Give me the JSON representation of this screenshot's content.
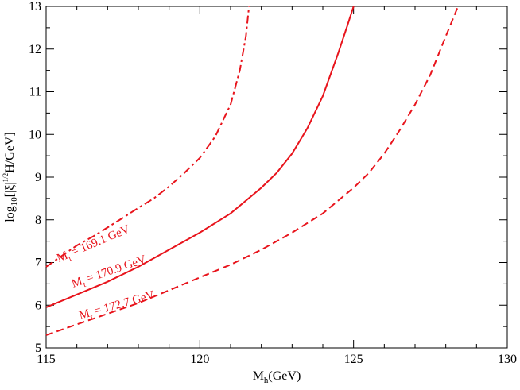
{
  "chart_data": {
    "type": "line",
    "xlabel": {
      "main": "M",
      "sub": "h",
      "rest": "(GeV)"
    },
    "ylabel": {
      "p1": "log",
      "sub": "10",
      "p2": "[|ξ|",
      "sup": "1/2",
      "p3": "H/GeV]"
    },
    "xlim": [
      115,
      130
    ],
    "ylim": [
      5,
      13
    ],
    "xticks": [
      115,
      120,
      125,
      130
    ],
    "yticks": [
      5,
      6,
      7,
      8,
      9,
      10,
      11,
      12,
      13
    ],
    "grid": false,
    "line_color": "#e8141c",
    "series": [
      {
        "name": "M_t = 169.1 GeV",
        "label": {
          "main": "M",
          "sub": "t",
          "rest": " = 169.1 GeV"
        },
        "dash": "dashdot",
        "points": [
          [
            115.0,
            6.9
          ],
          [
            115.5,
            7.15
          ],
          [
            116.0,
            7.4
          ],
          [
            116.5,
            7.6
          ],
          [
            117.0,
            7.82
          ],
          [
            117.5,
            8.05
          ],
          [
            118.0,
            8.28
          ],
          [
            118.5,
            8.5
          ],
          [
            119.0,
            8.78
          ],
          [
            119.5,
            9.1
          ],
          [
            120.0,
            9.45
          ],
          [
            120.5,
            9.95
          ],
          [
            121.0,
            10.7
          ],
          [
            121.3,
            11.5
          ],
          [
            121.5,
            12.3
          ],
          [
            121.6,
            13.0
          ]
        ]
      },
      {
        "name": "M_t = 170.9 GeV",
        "label": {
          "main": "M",
          "sub": "t",
          "rest": " = 170.9 GeV"
        },
        "dash": "solid",
        "points": [
          [
            115.0,
            5.95
          ],
          [
            116.0,
            6.25
          ],
          [
            117.0,
            6.55
          ],
          [
            118.0,
            6.9
          ],
          [
            119.0,
            7.3
          ],
          [
            120.0,
            7.7
          ],
          [
            121.0,
            8.15
          ],
          [
            122.0,
            8.75
          ],
          [
            122.5,
            9.1
          ],
          [
            123.0,
            9.55
          ],
          [
            123.5,
            10.15
          ],
          [
            124.0,
            10.9
          ],
          [
            124.5,
            11.9
          ],
          [
            124.8,
            12.55
          ],
          [
            125.0,
            13.0
          ]
        ]
      },
      {
        "name": "M_t = 172.7 GeV",
        "label": {
          "main": "M",
          "sub": "t",
          "rest": " = 172.7 GeV"
        },
        "dash": "dashed",
        "points": [
          [
            115.0,
            5.3
          ],
          [
            116.0,
            5.55
          ],
          [
            117.0,
            5.8
          ],
          [
            118.0,
            6.05
          ],
          [
            119.0,
            6.35
          ],
          [
            120.0,
            6.65
          ],
          [
            121.0,
            6.95
          ],
          [
            122.0,
            7.3
          ],
          [
            123.0,
            7.7
          ],
          [
            124.0,
            8.15
          ],
          [
            125.0,
            8.75
          ],
          [
            125.5,
            9.1
          ],
          [
            126.0,
            9.55
          ],
          [
            126.5,
            10.1
          ],
          [
            127.0,
            10.7
          ],
          [
            127.5,
            11.4
          ],
          [
            128.0,
            12.3
          ],
          [
            128.4,
            13.0
          ]
        ]
      }
    ]
  }
}
